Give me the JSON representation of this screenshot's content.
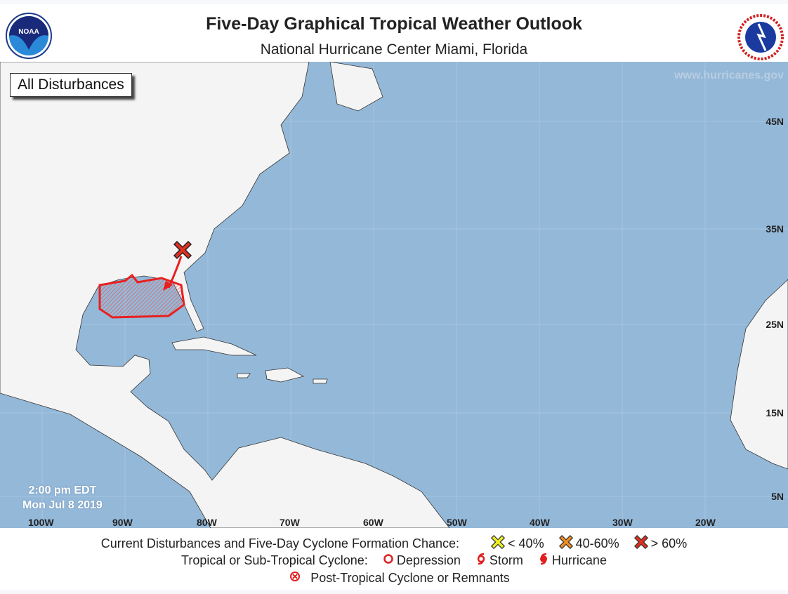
{
  "header": {
    "title": "Five-Day Graphical Tropical Weather Outlook",
    "subtitle": "National Hurricane Center  Miami, Florida",
    "logo_left": "NOAA",
    "logo_right": "NATIONAL WEATHER SERVICE"
  },
  "map": {
    "panel_label": "All Disturbances",
    "watermark": "www.hurricanes.gov",
    "issued_time": "2:00 pm EDT",
    "issued_date": "Mon Jul 8 2019",
    "latitude_labels": [
      "45N",
      "35N",
      "25N",
      "15N",
      "5N"
    ],
    "longitude_labels": [
      "100W",
      "90W",
      "80W",
      "70W",
      "60W",
      "50W",
      "40W",
      "30W",
      "20W"
    ],
    "disturbance": {
      "formation_chance": "> 60%",
      "marker": "x-icon",
      "color": "#e03020"
    },
    "colors": {
      "ocean": "#94b8d8",
      "land": "#f4f4f4",
      "high": "#e03020",
      "medium": "#f08c20",
      "low": "#f0f020"
    }
  },
  "legend": {
    "row1_label": "Current Disturbances and Five-Day Cyclone Formation Chance:",
    "low": "< 40%",
    "medium": "40-60%",
    "high": "> 60%",
    "row2_label": "Tropical or Sub-Tropical Cyclone:",
    "depression": "Depression",
    "storm": "Storm",
    "hurricane": "Hurricane",
    "post_tropical": "Post-Tropical Cyclone or Remnants"
  }
}
